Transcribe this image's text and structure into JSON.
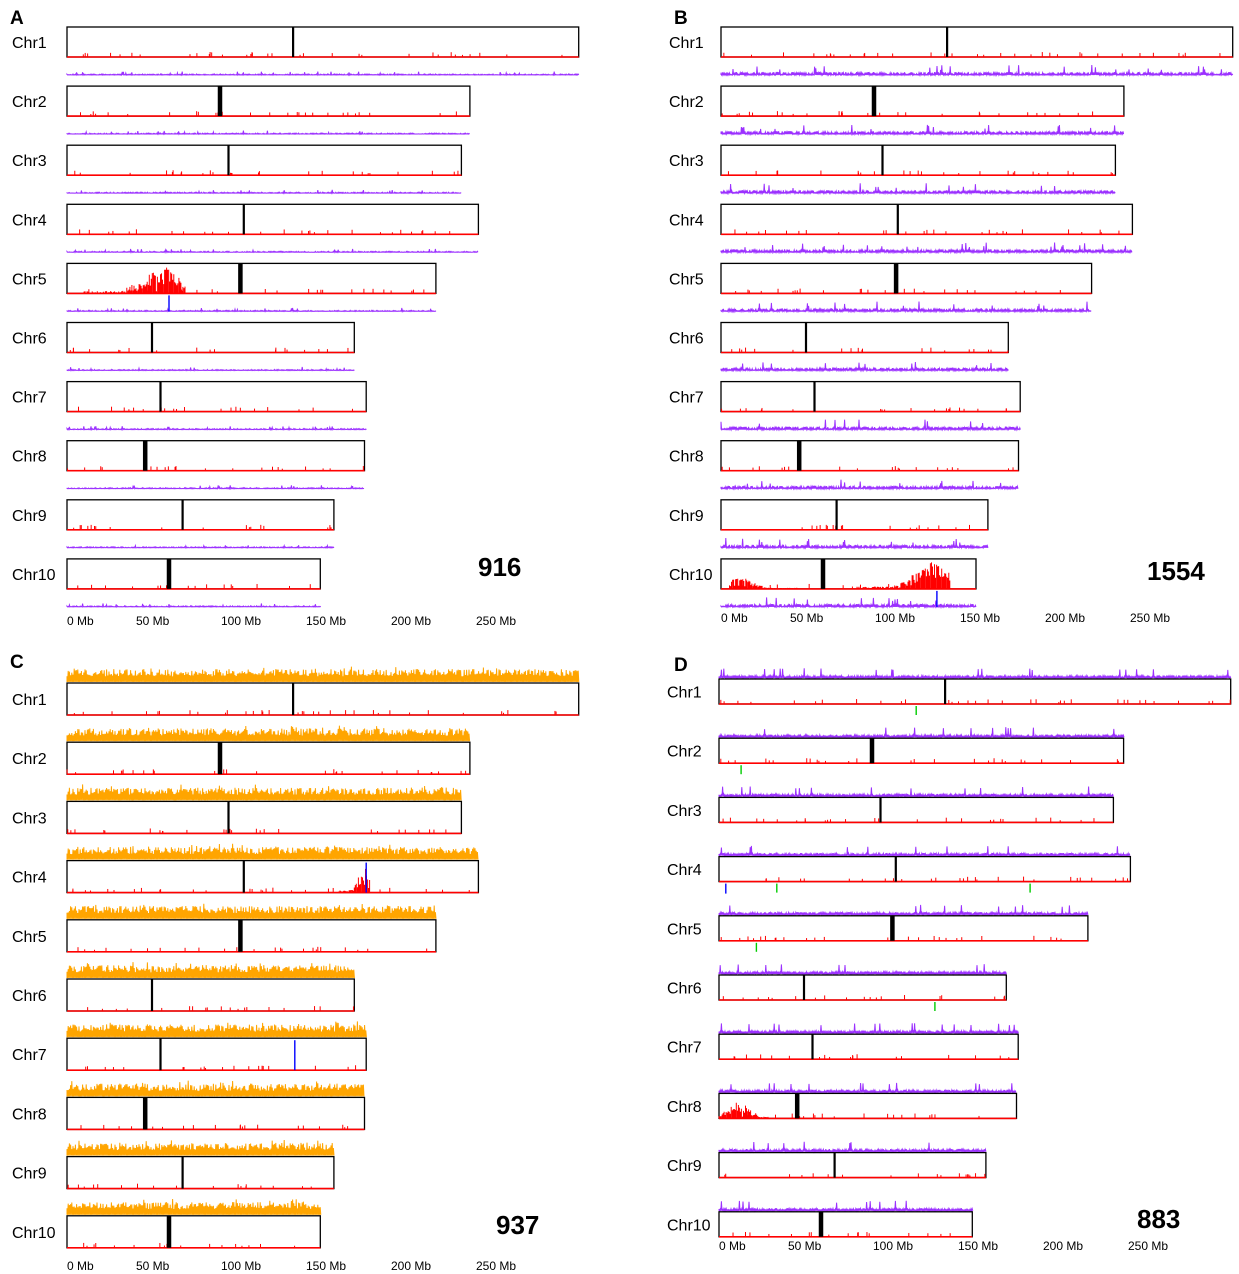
{
  "figure": {
    "axis_ticks": [
      "0 Mb",
      "50 Mb",
      "100 Mb",
      "150 Mb",
      "200 Mb",
      "250 Mb"
    ],
    "colors": {
      "box_stroke": "#000000",
      "baseline": "#ff0000",
      "centromere": "#000000",
      "red_track": "#ff0000",
      "purple_track": "#9b30ff",
      "orange_track": "#ffa500",
      "blue_mark": "#0000ff",
      "green_mark": "#00cc00"
    },
    "panels": [
      {
        "letter": "A",
        "count": "916",
        "top_track": null,
        "bottom_track": "purple",
        "hotspots": [
          {
            "chr": 5,
            "from": 10,
            "to": 70,
            "peak": 57,
            "height": 1.0
          }
        ],
        "blue_marks": [
          {
            "chr": 5,
            "pos": 60,
            "track": "bottom"
          }
        ],
        "green_marks": [],
        "chromosomes": [
          {
            "label": "Chr1",
            "length": 301,
            "centromere": 133
          },
          {
            "label": "Chr2",
            "length": 237,
            "centromere": 90
          },
          {
            "label": "Chr3",
            "length": 232,
            "centromere": 95
          },
          {
            "label": "Chr4",
            "length": 242,
            "centromere": 104
          },
          {
            "label": "Chr5",
            "length": 217,
            "centromere": 102
          },
          {
            "label": "Chr6",
            "length": 169,
            "centromere": 50
          },
          {
            "label": "Chr7",
            "length": 176,
            "centromere": 55
          },
          {
            "label": "Chr8",
            "length": 175,
            "centromere": 46
          },
          {
            "label": "Chr9",
            "length": 157,
            "centromere": 68
          },
          {
            "label": "Chr10",
            "length": 149,
            "centromere": 60
          }
        ]
      },
      {
        "letter": "B",
        "count": "1554",
        "top_track": null,
        "bottom_track": "purple",
        "hotspots": [
          {
            "chr": 10,
            "from": 5,
            "to": 45,
            "peak": 10,
            "height": 0.5
          },
          {
            "chr": 10,
            "from": 80,
            "to": 135,
            "peak": 125,
            "height": 1.0
          }
        ],
        "blue_marks": [
          {
            "chr": 10,
            "pos": 127,
            "track": "bottom"
          }
        ],
        "green_marks": [],
        "chromosomes": [
          {
            "label": "Chr1",
            "length": 301,
            "centromere": 133
          },
          {
            "label": "Chr2",
            "length": 237,
            "centromere": 90
          },
          {
            "label": "Chr3",
            "length": 232,
            "centromere": 95
          },
          {
            "label": "Chr4",
            "length": 242,
            "centromere": 104
          },
          {
            "label": "Chr5",
            "length": 218,
            "centromere": 103
          },
          {
            "label": "Chr6",
            "length": 169,
            "centromere": 50
          },
          {
            "label": "Chr7",
            "length": 176,
            "centromere": 55
          },
          {
            "label": "Chr8",
            "length": 175,
            "centromere": 46
          },
          {
            "label": "Chr9",
            "length": 157,
            "centromere": 68
          },
          {
            "label": "Chr10",
            "length": 150,
            "centromere": 60
          }
        ]
      },
      {
        "letter": "C",
        "count": "937",
        "top_track": "orange",
        "bottom_track": null,
        "hotspots": [
          {
            "chr": 4,
            "from": 160,
            "to": 178,
            "peak": 174,
            "height": 1.0
          }
        ],
        "blue_marks": [
          {
            "chr": 4,
            "pos": 176,
            "track": "box"
          },
          {
            "chr": 7,
            "pos": 134,
            "track": "box"
          }
        ],
        "green_marks": [],
        "chromosomes": [
          {
            "label": "Chr1",
            "length": 301,
            "centromere": 133
          },
          {
            "label": "Chr2",
            "length": 237,
            "centromere": 90
          },
          {
            "label": "Chr3",
            "length": 232,
            "centromere": 95
          },
          {
            "label": "Chr4",
            "length": 242,
            "centromere": 104
          },
          {
            "label": "Chr5",
            "length": 217,
            "centromere": 102
          },
          {
            "label": "Chr6",
            "length": 169,
            "centromere": 50
          },
          {
            "label": "Chr7",
            "length": 176,
            "centromere": 55
          },
          {
            "label": "Chr8",
            "length": 175,
            "centromere": 46
          },
          {
            "label": "Chr9",
            "length": 157,
            "centromere": 68
          },
          {
            "label": "Chr10",
            "length": 149,
            "centromere": 60
          }
        ]
      },
      {
        "letter": "D",
        "count": "883",
        "top_track": "purple",
        "bottom_track": null,
        "hotspots": [
          {
            "chr": 8,
            "from": 0,
            "to": 30,
            "peak": 12,
            "height": 0.9
          }
        ],
        "blue_marks": [
          {
            "chr": 4,
            "pos": 4,
            "track": "below"
          }
        ],
        "green_marks": [
          {
            "chr": 1,
            "pos": 116
          },
          {
            "chr": 2,
            "pos": 13
          },
          {
            "chr": 4,
            "pos": 34
          },
          {
            "chr": 4,
            "pos": 183
          },
          {
            "chr": 5,
            "pos": 22
          },
          {
            "chr": 6,
            "pos": 127
          }
        ],
        "chromosomes": [
          {
            "label": "Chr1",
            "length": 301,
            "centromere": 133
          },
          {
            "label": "Chr2",
            "length": 238,
            "centromere": 90
          },
          {
            "label": "Chr3",
            "length": 232,
            "centromere": 95
          },
          {
            "label": "Chr4",
            "length": 242,
            "centromere": 104
          },
          {
            "label": "Chr5",
            "length": 217,
            "centromere": 102
          },
          {
            "label": "Chr6",
            "length": 169,
            "centromere": 50
          },
          {
            "label": "Chr7",
            "length": 176,
            "centromere": 55
          },
          {
            "label": "Chr8",
            "length": 175,
            "centromere": 46
          },
          {
            "label": "Chr9",
            "length": 157,
            "centromere": 68
          },
          {
            "label": "Chr10",
            "length": 149,
            "centromere": 60
          }
        ]
      }
    ]
  }
}
